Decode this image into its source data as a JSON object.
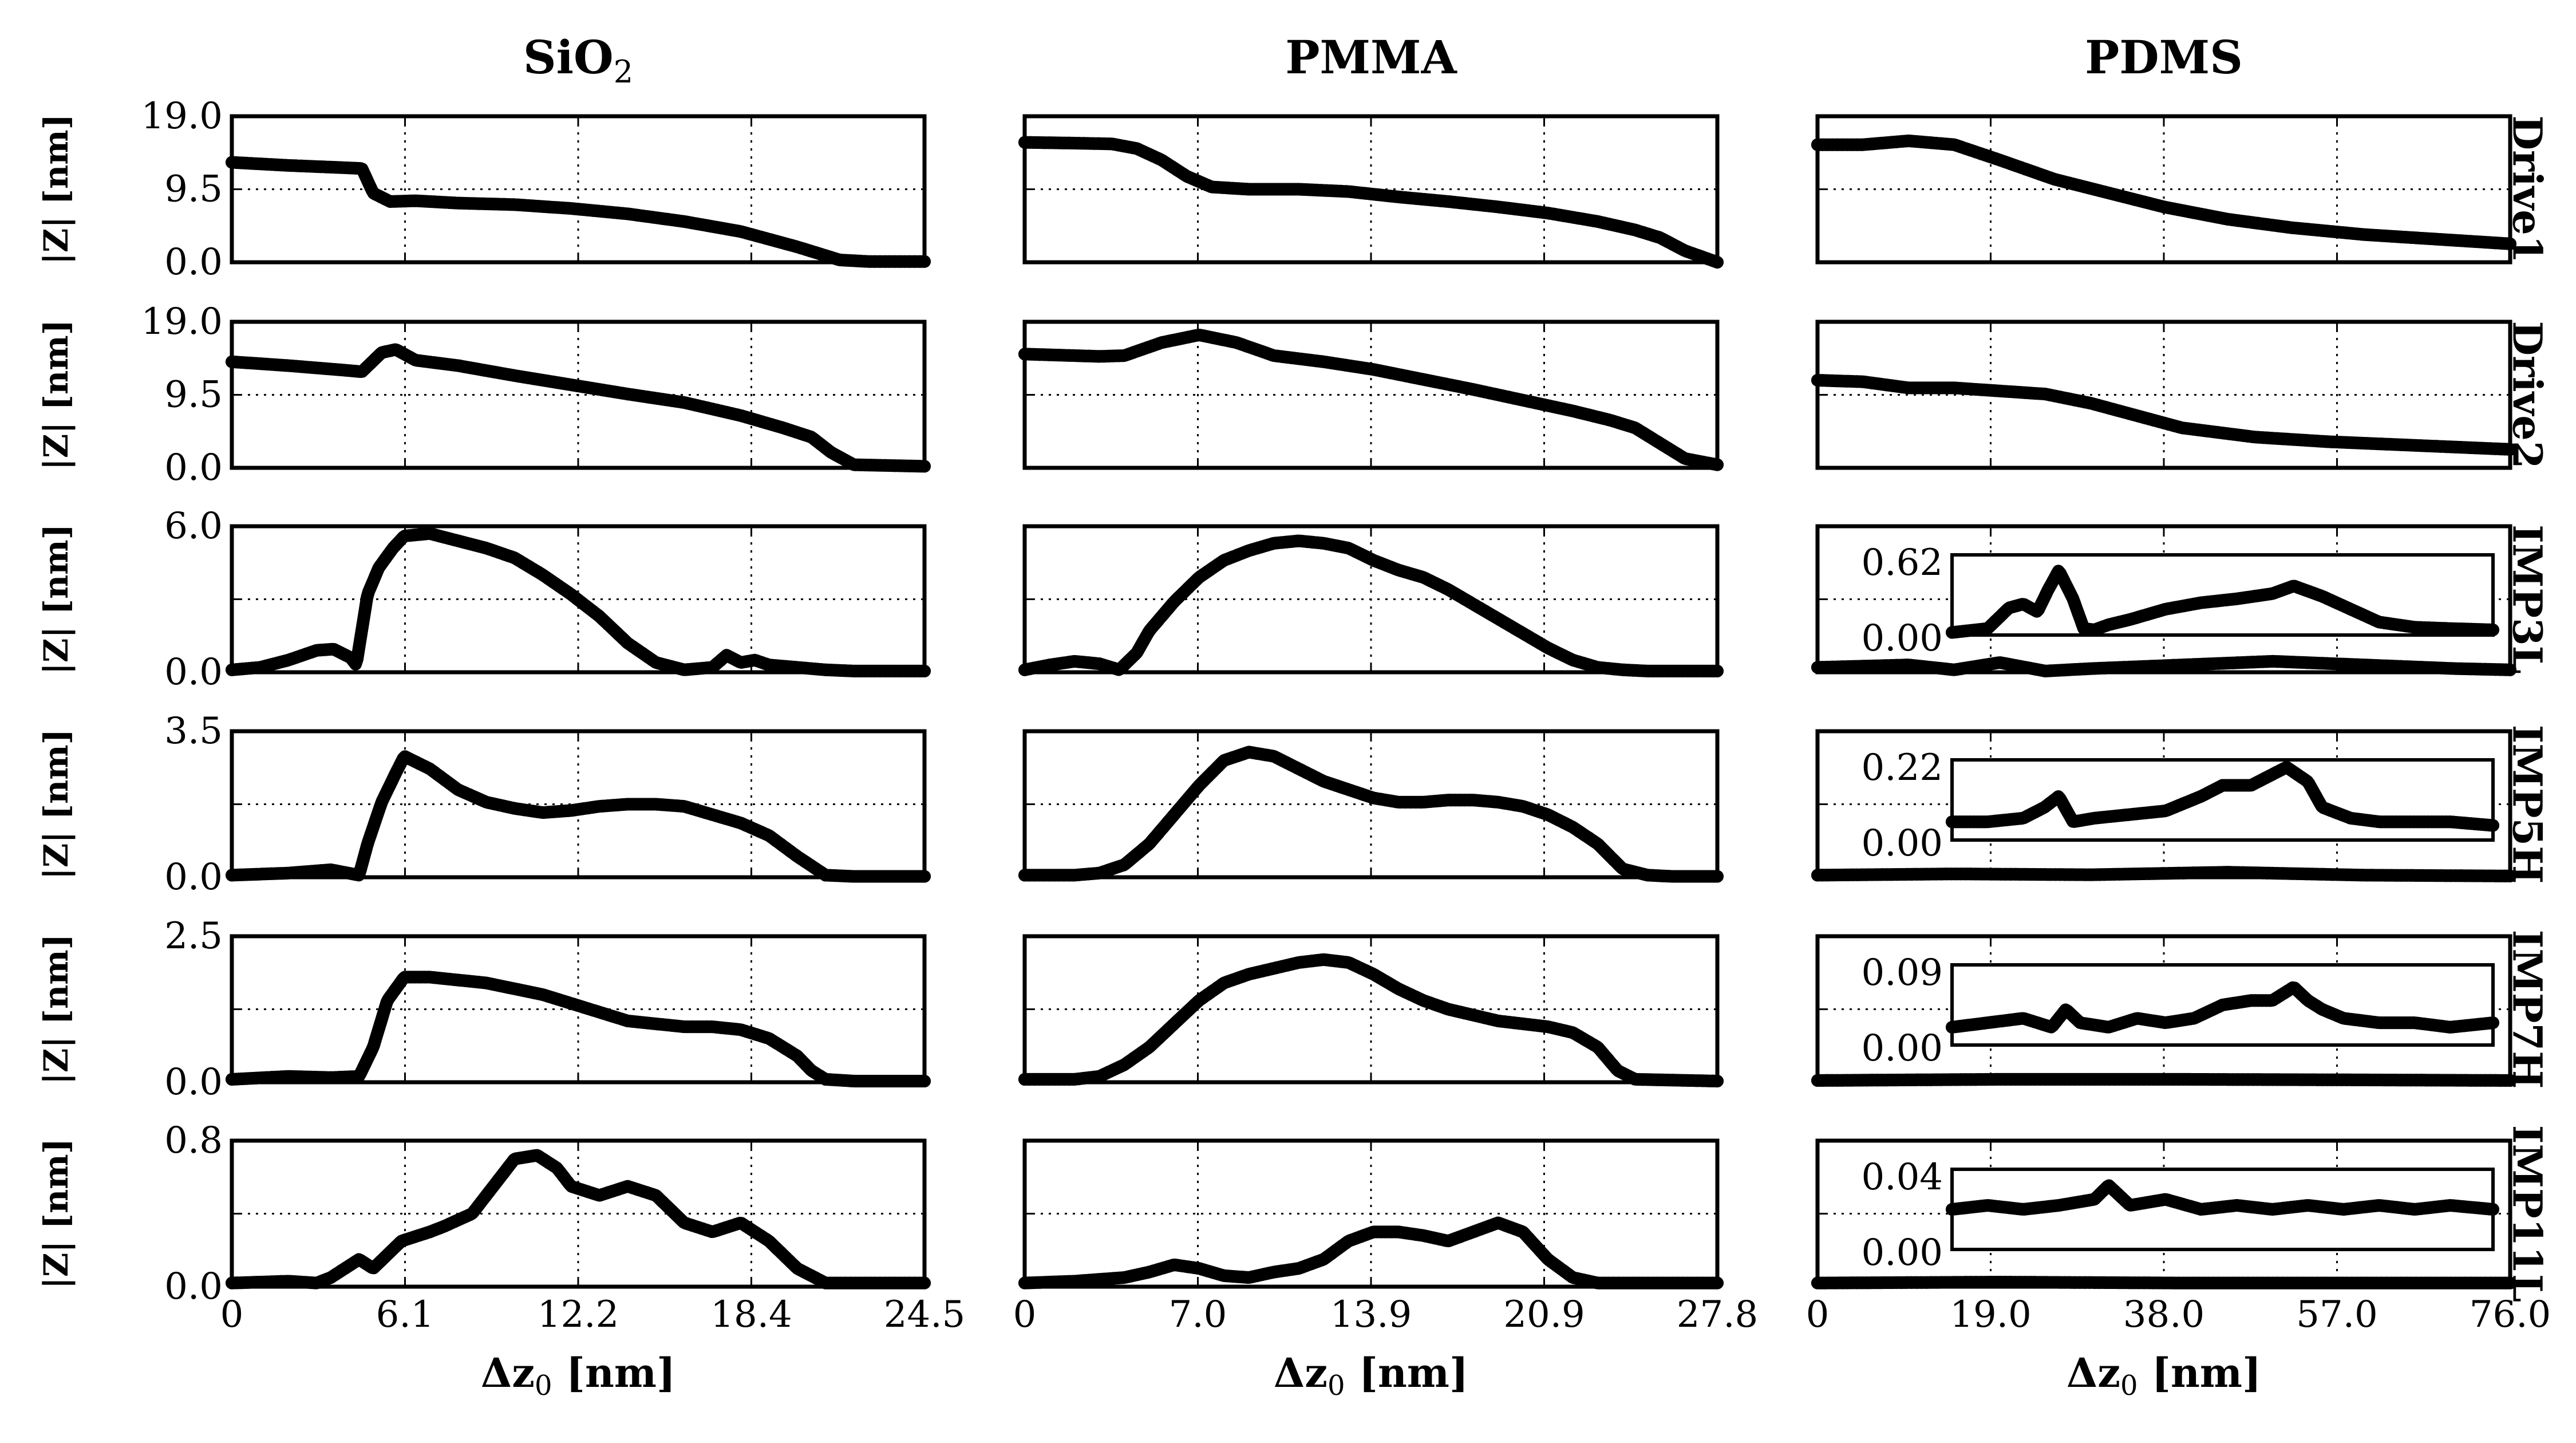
{
  "figure": {
    "columns": [
      {
        "key": "sio2",
        "title_main": "SiO",
        "title_sub": "2",
        "x_ticks": [
          "0",
          "6.1",
          "12.2",
          "18.4",
          "24.5"
        ],
        "xlabel_main": "Δz",
        "xlabel_sub": "0",
        "xlabel_unit": " [nm]"
      },
      {
        "key": "pmma",
        "title_main": "PMMA",
        "title_sub": "",
        "x_ticks": [
          "0",
          "7.0",
          "13.9",
          "20.9",
          "27.8"
        ],
        "xlabel_main": "Δz",
        "xlabel_sub": "0",
        "xlabel_unit": " [nm]"
      },
      {
        "key": "pdms",
        "title_main": "PDMS",
        "title_sub": "",
        "x_ticks": [
          "0",
          "19.0",
          "38.0",
          "57.0",
          "76.0"
        ],
        "xlabel_main": "Δz",
        "xlabel_sub": "0",
        "xlabel_unit": " [nm]"
      }
    ],
    "rows": [
      {
        "label": "Drive1",
        "y_ticks": [
          "19.0",
          "9.5",
          "0.0"
        ]
      },
      {
        "label": "Drive2",
        "y_ticks": [
          "19.0",
          "9.5",
          "0.0"
        ]
      },
      {
        "label": "IMP3L",
        "y_ticks": [
          "6.0",
          "0.0"
        ]
      },
      {
        "label": "IMP5H",
        "y_ticks": [
          "3.5",
          "0.0"
        ]
      },
      {
        "label": "IMP7H",
        "y_ticks": [
          "2.5",
          "0.0"
        ]
      },
      {
        "label": "IMP11L",
        "y_ticks": [
          "0.8",
          "0.0"
        ]
      }
    ],
    "ylabel": "|Z| [nm]",
    "insets": [
      {
        "row": 2,
        "y_ticks": [
          "0.62",
          "0.00"
        ]
      },
      {
        "row": 3,
        "y_ticks": [
          "0.22",
          "0.00"
        ]
      },
      {
        "row": 4,
        "y_ticks": [
          "0.09",
          "0.00"
        ]
      },
      {
        "row": 5,
        "y_ticks": [
          "0.04",
          "0.00"
        ]
      }
    ]
  },
  "chart_data": [
    {
      "type": "scatter",
      "column": "SiO2",
      "row": "Drive1",
      "xlim": [
        0,
        24.5
      ],
      "ylim": [
        0,
        19
      ],
      "x": [
        0,
        2,
        4,
        4.6,
        5,
        5.6,
        6.5,
        8,
        10,
        12,
        14,
        16,
        18,
        20,
        21.5,
        22.5,
        24.5
      ],
      "y": [
        13,
        12.6,
        12.3,
        12.2,
        9,
        7.9,
        8,
        7.7,
        7.5,
        7,
        6.3,
        5.3,
        4,
        2,
        0.3,
        0.1,
        0.1
      ]
    },
    {
      "type": "scatter",
      "column": "PMMA",
      "row": "Drive1",
      "xlim": [
        0,
        27.8
      ],
      "ylim": [
        0,
        19
      ],
      "x": [
        0,
        2,
        3.5,
        4.5,
        5.5,
        6.5,
        7.5,
        9,
        11,
        13,
        15,
        17,
        19,
        21,
        23,
        24.5,
        25.5,
        26.5,
        27.8
      ],
      "y": [
        15.6,
        15.5,
        15.4,
        14.8,
        13.3,
        11.2,
        9.8,
        9.5,
        9.5,
        9.2,
        8.5,
        7.9,
        7.2,
        6.4,
        5.3,
        4.2,
        3.2,
        1.5,
        0
      ]
    },
    {
      "type": "scatter",
      "column": "PDMS",
      "row": "Drive1",
      "xlim": [
        0,
        76
      ],
      "ylim": [
        0,
        19
      ],
      "x": [
        0,
        5,
        10,
        15,
        20,
        26,
        32,
        38,
        45,
        52,
        60,
        68,
        76
      ],
      "y": [
        15.3,
        15.3,
        15.8,
        15.3,
        13.3,
        10.8,
        9,
        7.2,
        5.6,
        4.5,
        3.6,
        3,
        2.4
      ]
    },
    {
      "type": "scatter",
      "column": "SiO2",
      "row": "Drive2",
      "xlim": [
        0,
        24.5
      ],
      "ylim": [
        0,
        19
      ],
      "x": [
        0,
        2,
        4,
        4.6,
        5.3,
        5.8,
        6.5,
        8,
        10,
        12,
        14,
        16,
        18,
        19.5,
        20.5,
        21.2,
        22,
        24.5
      ],
      "y": [
        13.8,
        13.3,
        12.7,
        12.5,
        15,
        15.4,
        14,
        13.3,
        12,
        10.8,
        9.6,
        8.5,
        6.8,
        5.2,
        4,
        2,
        0.4,
        0.2
      ]
    },
    {
      "type": "scatter",
      "column": "PMMA",
      "row": "Drive2",
      "xlim": [
        0,
        27.8
      ],
      "ylim": [
        0,
        19
      ],
      "x": [
        0,
        3,
        4,
        5.5,
        7,
        8.5,
        10,
        12,
        14,
        16,
        18,
        20,
        22,
        23.5,
        24.5,
        25.5,
        26.5,
        27.8
      ],
      "y": [
        14.8,
        14.5,
        14.6,
        16.3,
        17.3,
        16.3,
        14.6,
        13.8,
        12.8,
        11.5,
        10.2,
        8.8,
        7.4,
        6.2,
        5.2,
        3.2,
        1.2,
        0.4
      ]
    },
    {
      "type": "scatter",
      "column": "PDMS",
      "row": "Drive2",
      "xlim": [
        0,
        76
      ],
      "ylim": [
        0,
        19
      ],
      "x": [
        0,
        5,
        10,
        15,
        20,
        25,
        30,
        35,
        40,
        48,
        56,
        64,
        76
      ],
      "y": [
        11.4,
        11.2,
        10.4,
        10.4,
        10,
        9.6,
        8.4,
        6.8,
        5.2,
        4,
        3.4,
        3,
        2.4
      ]
    },
    {
      "type": "scatter",
      "column": "SiO2",
      "row": "IMP3L",
      "xlim": [
        0,
        24.5
      ],
      "ylim": [
        0,
        6
      ],
      "x": [
        0,
        1,
        2,
        3,
        3.6,
        4.2,
        4.4,
        4.8,
        5.2,
        5.7,
        6.1,
        7,
        8,
        9,
        10,
        11,
        12,
        13,
        14,
        15,
        16,
        17,
        17.5,
        18,
        18.5,
        19,
        20,
        21,
        22,
        24.5
      ],
      "y": [
        0.1,
        0.2,
        0.5,
        0.9,
        0.95,
        0.6,
        0.3,
        3.2,
        4.3,
        5.1,
        5.6,
        5.7,
        5.4,
        5.1,
        4.7,
        4,
        3.2,
        2.3,
        1.2,
        0.4,
        0.1,
        0.2,
        0.7,
        0.4,
        0.5,
        0.3,
        0.2,
        0.1,
        0.05,
        0.05
      ]
    },
    {
      "type": "scatter",
      "column": "PMMA",
      "row": "IMP3L",
      "xlim": [
        0,
        27.8
      ],
      "ylim": [
        0,
        6
      ],
      "x": [
        0,
        1,
        2,
        3,
        3.8,
        4.5,
        5,
        6,
        7,
        8,
        9,
        10,
        11,
        12,
        13,
        14,
        15,
        16,
        17,
        18,
        19,
        20,
        21,
        22,
        23,
        24,
        25,
        27.8
      ],
      "y": [
        0.1,
        0.3,
        0.45,
        0.35,
        0.1,
        0.8,
        1.7,
        2.9,
        3.9,
        4.6,
        5,
        5.3,
        5.4,
        5.3,
        5.1,
        4.6,
        4.2,
        3.9,
        3.4,
        2.8,
        2.2,
        1.6,
        1,
        0.5,
        0.2,
        0.1,
        0.05,
        0.05
      ]
    },
    {
      "type": "scatter",
      "column": "PDMS",
      "row": "IMP3L",
      "xlim": [
        0,
        76
      ],
      "ylim": [
        0,
        6
      ],
      "x": [
        0,
        10,
        15,
        20,
        25,
        30,
        40,
        50,
        60,
        70,
        76
      ],
      "y": [
        0.2,
        0.3,
        0.1,
        0.4,
        0.05,
        0.15,
        0.3,
        0.45,
        0.3,
        0.15,
        0.1
      ]
    },
    {
      "type": "scatter",
      "column": "PDMS",
      "row": "IMP3L",
      "series": "inset",
      "xlim": [
        0,
        76
      ],
      "ylim": [
        0,
        0.62
      ],
      "x": [
        0,
        5,
        8,
        10,
        12,
        13.5,
        15,
        17,
        18.5,
        20,
        22,
        25,
        30,
        35,
        40,
        45,
        48,
        52,
        56,
        60,
        65,
        70,
        76
      ],
      "y": [
        0.02,
        0.05,
        0.21,
        0.24,
        0.18,
        0.35,
        0.5,
        0.28,
        0.05,
        0.04,
        0.08,
        0.12,
        0.2,
        0.25,
        0.28,
        0.32,
        0.38,
        0.3,
        0.2,
        0.1,
        0.06,
        0.05,
        0.04
      ]
    },
    {
      "type": "scatter",
      "column": "SiO2",
      "row": "IMP5H",
      "xlim": [
        0,
        24.5
      ],
      "ylim": [
        0,
        3.5
      ],
      "x": [
        0,
        2,
        3.5,
        4.5,
        4.8,
        5.3,
        5.8,
        6.1,
        7,
        8,
        9,
        10,
        11,
        12,
        13,
        14,
        15,
        16,
        17,
        18,
        19,
        20,
        21,
        22,
        24.5
      ],
      "y": [
        0.05,
        0.1,
        0.18,
        0.05,
        0.8,
        1.8,
        2.5,
        2.9,
        2.6,
        2.1,
        1.8,
        1.65,
        1.55,
        1.6,
        1.7,
        1.75,
        1.75,
        1.7,
        1.5,
        1.3,
        1,
        0.5,
        0.05,
        0.02,
        0.02
      ]
    },
    {
      "type": "scatter",
      "column": "PMMA",
      "row": "IMP5H",
      "xlim": [
        0,
        27.8
      ],
      "ylim": [
        0,
        3.5
      ],
      "x": [
        0,
        2,
        3,
        4,
        5,
        6,
        7,
        8,
        9,
        10,
        11,
        12,
        13,
        14,
        15,
        16,
        17,
        18,
        19,
        20,
        21,
        22,
        23,
        24,
        25,
        26,
        27.8
      ],
      "y": [
        0.05,
        0.05,
        0.1,
        0.3,
        0.8,
        1.5,
        2.2,
        2.8,
        3,
        2.9,
        2.6,
        2.3,
        2.1,
        1.9,
        1.8,
        1.8,
        1.85,
        1.85,
        1.8,
        1.7,
        1.5,
        1.2,
        0.8,
        0.2,
        0.05,
        0.02,
        0.02
      ]
    },
    {
      "type": "scatter",
      "column": "PDMS",
      "row": "IMP5H",
      "xlim": [
        0,
        76
      ],
      "ylim": [
        0,
        3.5
      ],
      "x": [
        0,
        15,
        30,
        45,
        60,
        76
      ],
      "y": [
        0.05,
        0.08,
        0.06,
        0.12,
        0.05,
        0.03
      ]
    },
    {
      "type": "scatter",
      "column": "PDMS",
      "row": "IMP5H",
      "series": "inset",
      "xlim": [
        0,
        76
      ],
      "ylim": [
        0,
        0.22
      ],
      "x": [
        0,
        5,
        10,
        13,
        15,
        17,
        20,
        25,
        30,
        35,
        38,
        42,
        45,
        47,
        50,
        52,
        56,
        60,
        65,
        70,
        76
      ],
      "y": [
        0.05,
        0.05,
        0.06,
        0.09,
        0.12,
        0.05,
        0.06,
        0.07,
        0.08,
        0.12,
        0.15,
        0.15,
        0.18,
        0.2,
        0.16,
        0.09,
        0.06,
        0.05,
        0.05,
        0.05,
        0.04
      ]
    },
    {
      "type": "scatter",
      "column": "SiO2",
      "row": "IMP7H",
      "xlim": [
        0,
        24.5
      ],
      "ylim": [
        0,
        2.5
      ],
      "x": [
        0,
        2,
        3.5,
        4.5,
        5,
        5.5,
        6.1,
        7,
        8,
        9,
        10,
        11,
        12,
        13,
        14,
        15,
        16,
        17,
        18,
        19,
        20,
        20.5,
        21,
        22,
        24.5
      ],
      "y": [
        0.05,
        0.1,
        0.08,
        0.1,
        0.6,
        1.4,
        1.8,
        1.8,
        1.75,
        1.7,
        1.6,
        1.5,
        1.35,
        1.2,
        1.05,
        1,
        0.95,
        0.95,
        0.9,
        0.75,
        0.45,
        0.2,
        0.05,
        0.02,
        0.02
      ]
    },
    {
      "type": "scatter",
      "column": "PMMA",
      "row": "IMP7H",
      "xlim": [
        0,
        27.8
      ],
      "ylim": [
        0,
        2.5
      ],
      "x": [
        0,
        2,
        3,
        4,
        5,
        6,
        7,
        8,
        9,
        10,
        11,
        12,
        13,
        14,
        15,
        16,
        17,
        18,
        19,
        20,
        21,
        22,
        23,
        23.8,
        24.5,
        27.8
      ],
      "y": [
        0.05,
        0.05,
        0.1,
        0.3,
        0.6,
        1,
        1.4,
        1.7,
        1.85,
        1.95,
        2.05,
        2.1,
        2.05,
        1.85,
        1.6,
        1.4,
        1.25,
        1.15,
        1.05,
        1,
        0.95,
        0.85,
        0.6,
        0.2,
        0.05,
        0.02
      ]
    },
    {
      "type": "scatter",
      "column": "PDMS",
      "row": "IMP7H",
      "xlim": [
        0,
        76
      ],
      "ylim": [
        0,
        2.5
      ],
      "x": [
        0,
        20,
        40,
        60,
        76
      ],
      "y": [
        0.03,
        0.05,
        0.05,
        0.04,
        0.03
      ]
    },
    {
      "type": "scatter",
      "column": "PDMS",
      "row": "IMP7H",
      "series": "inset",
      "xlim": [
        0,
        76
      ],
      "ylim": [
        0,
        0.09
      ],
      "x": [
        0,
        5,
        10,
        14,
        16,
        18,
        22,
        26,
        30,
        34,
        38,
        42,
        45,
        48,
        50,
        52,
        55,
        60,
        65,
        70,
        76
      ],
      "y": [
        0.02,
        0.025,
        0.03,
        0.02,
        0.04,
        0.025,
        0.02,
        0.03,
        0.025,
        0.03,
        0.045,
        0.05,
        0.05,
        0.065,
        0.05,
        0.04,
        0.03,
        0.025,
        0.025,
        0.02,
        0.025
      ]
    },
    {
      "type": "scatter",
      "column": "SiO2",
      "row": "IMP11L",
      "xlim": [
        0,
        24.5
      ],
      "ylim": [
        0,
        0.8
      ],
      "x": [
        0,
        2,
        3,
        3.5,
        4,
        4.5,
        5,
        6,
        7,
        7.5,
        8.5,
        9.5,
        10,
        10.8,
        11.5,
        12,
        13,
        14,
        15,
        16,
        17,
        18,
        19,
        20,
        21,
        22,
        24.5
      ],
      "y": [
        0.02,
        0.03,
        0.02,
        0.05,
        0.1,
        0.15,
        0.1,
        0.25,
        0.3,
        0.33,
        0.4,
        0.6,
        0.7,
        0.72,
        0.65,
        0.55,
        0.5,
        0.55,
        0.5,
        0.35,
        0.3,
        0.35,
        0.25,
        0.1,
        0.02,
        0.02,
        0.02
      ]
    },
    {
      "type": "scatter",
      "column": "PMMA",
      "row": "IMP11L",
      "xlim": [
        0,
        27.8
      ],
      "ylim": [
        0,
        0.8
      ],
      "x": [
        0,
        2,
        4,
        5,
        6,
        7,
        8,
        9,
        10,
        11,
        12,
        13,
        14,
        15,
        16,
        17,
        18,
        19,
        20,
        21,
        22,
        23,
        24,
        27.8
      ],
      "y": [
        0.02,
        0.03,
        0.05,
        0.08,
        0.12,
        0.1,
        0.06,
        0.05,
        0.08,
        0.1,
        0.15,
        0.25,
        0.3,
        0.3,
        0.28,
        0.25,
        0.3,
        0.35,
        0.3,
        0.15,
        0.05,
        0.02,
        0.02,
        0.02
      ]
    },
    {
      "type": "scatter",
      "column": "PDMS",
      "row": "IMP11L",
      "xlim": [
        0,
        76
      ],
      "ylim": [
        0,
        0.8
      ],
      "x": [
        0,
        20,
        40,
        60,
        76
      ],
      "y": [
        0.02,
        0.025,
        0.02,
        0.02,
        0.02
      ]
    },
    {
      "type": "scatter",
      "column": "PDMS",
      "row": "IMP11L",
      "series": "inset",
      "xlim": [
        0,
        76
      ],
      "ylim": [
        0,
        0.04
      ],
      "x": [
        0,
        5,
        10,
        15,
        20,
        22,
        25,
        30,
        35,
        40,
        45,
        50,
        55,
        60,
        65,
        70,
        76
      ],
      "y": [
        0.02,
        0.022,
        0.02,
        0.022,
        0.025,
        0.032,
        0.022,
        0.025,
        0.02,
        0.022,
        0.02,
        0.022,
        0.02,
        0.022,
        0.02,
        0.022,
        0.02
      ]
    }
  ]
}
